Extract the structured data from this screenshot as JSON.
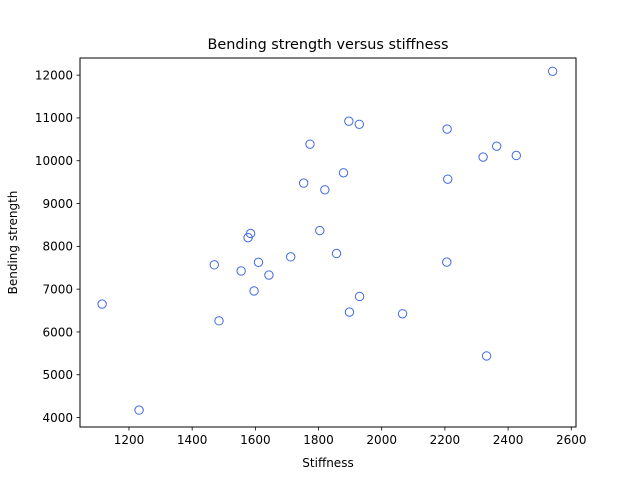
{
  "chart_data": {
    "type": "scatter",
    "title": "Bending strength versus stiffness",
    "xlabel": "Stiffness",
    "ylabel": "Bending strength",
    "xlim": [
      1045,
      2615
    ],
    "ylim": [
      3780,
      12400
    ],
    "xticks": [
      1200,
      1400,
      1600,
      1800,
      2000,
      2200,
      2400,
      2600
    ],
    "yticks": [
      4000,
      5000,
      6000,
      7000,
      8000,
      9000,
      10000,
      11000,
      12000
    ],
    "grid": false,
    "marker": "open-circle",
    "marker_color": "#4169e1",
    "series": [
      {
        "points": [
          [
            1232,
            4175
          ],
          [
            1115,
            6652
          ],
          [
            1470,
            7568
          ],
          [
            1485,
            6260
          ],
          [
            1555,
            7425
          ],
          [
            1577,
            8204
          ],
          [
            1585,
            8301
          ],
          [
            1596,
            6958
          ],
          [
            1610,
            7628
          ],
          [
            1643,
            7330
          ],
          [
            1712,
            7755
          ],
          [
            1753,
            9478
          ],
          [
            1773,
            10387
          ],
          [
            1804,
            8370
          ],
          [
            1820,
            9321
          ],
          [
            1857,
            7834
          ],
          [
            1879,
            9719
          ],
          [
            1896,
            10924
          ],
          [
            1898,
            6465
          ],
          [
            1929,
            10852
          ],
          [
            1930,
            6829
          ],
          [
            2066,
            6425
          ],
          [
            2206,
            7633
          ],
          [
            2207,
            10740
          ],
          [
            2209,
            9570
          ],
          [
            2321,
            10086
          ],
          [
            2332,
            5441
          ],
          [
            2364,
            10340
          ],
          [
            2426,
            10123
          ],
          [
            2541,
            12090
          ]
        ]
      }
    ]
  }
}
